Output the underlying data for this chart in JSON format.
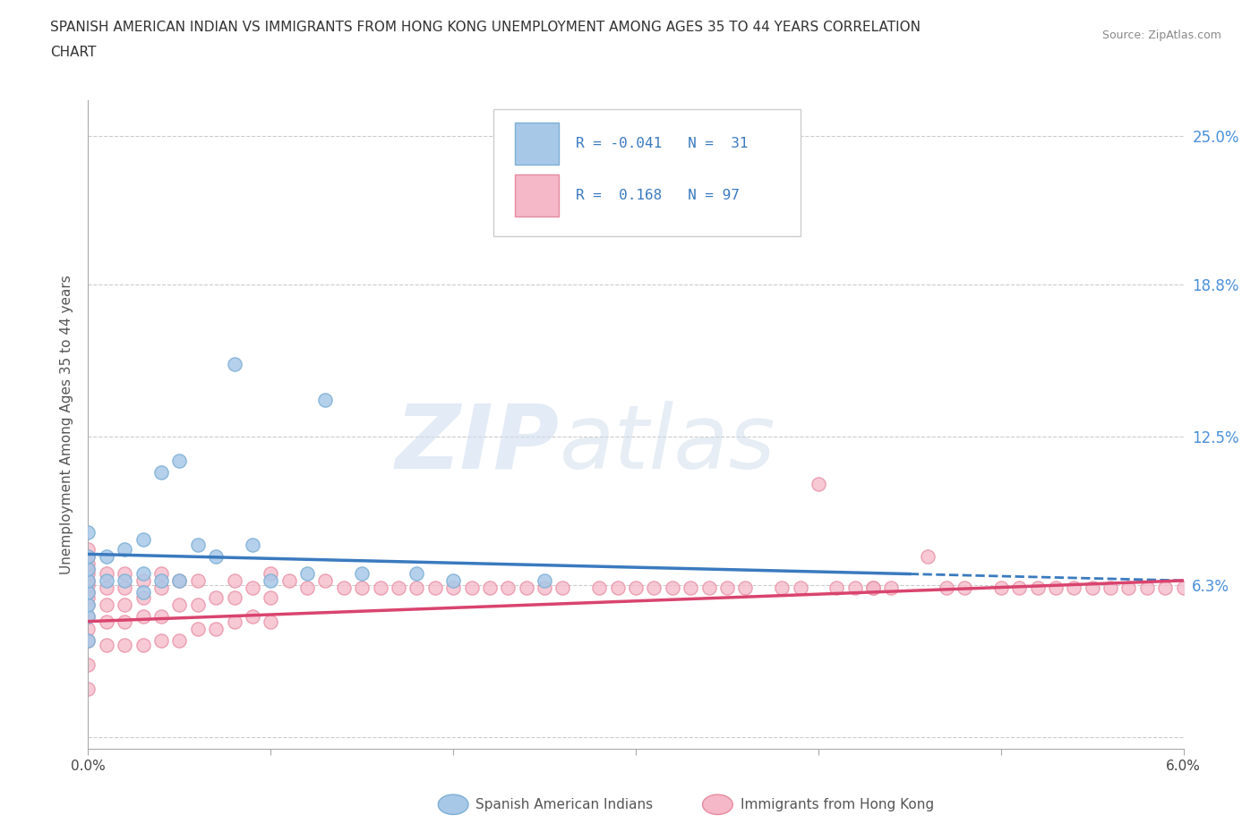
{
  "title_line1": "SPANISH AMERICAN INDIAN VS IMMIGRANTS FROM HONG KONG UNEMPLOYMENT AMONG AGES 35 TO 44 YEARS CORRELATION",
  "title_line2": "CHART",
  "source_text": "Source: ZipAtlas.com",
  "ylabel": "Unemployment Among Ages 35 to 44 years",
  "xlim": [
    0.0,
    0.06
  ],
  "ylim": [
    -0.005,
    0.265
  ],
  "ytick_values": [
    0.063,
    0.125,
    0.188,
    0.25
  ],
  "ytick_labels": [
    "6.3%",
    "12.5%",
    "18.8%",
    "25.0%"
  ],
  "color_blue": "#a8c8e8",
  "color_blue_edge": "#7bafd4",
  "color_pink": "#f4b8c8",
  "color_pink_edge": "#e88aa0",
  "color_blue_line": "#3a7abf",
  "color_pink_line": "#d9446e",
  "grid_color": "#cccccc",
  "watermark_zip": "ZIP",
  "watermark_atlas": "atlas",
  "blue_x": [
    0.0,
    0.0,
    0.0,
    0.0,
    0.0,
    0.0,
    0.0,
    0.0,
    0.001,
    0.001,
    0.002,
    0.002,
    0.003,
    0.003,
    0.003,
    0.004,
    0.004,
    0.005,
    0.005,
    0.006,
    0.007,
    0.008,
    0.009,
    0.01,
    0.012,
    0.013,
    0.015,
    0.018,
    0.02,
    0.025,
    0.028
  ],
  "blue_y": [
    0.04,
    0.05,
    0.055,
    0.06,
    0.065,
    0.07,
    0.075,
    0.085,
    0.065,
    0.075,
    0.065,
    0.078,
    0.06,
    0.068,
    0.082,
    0.065,
    0.11,
    0.065,
    0.115,
    0.08,
    0.075,
    0.155,
    0.08,
    0.065,
    0.068,
    0.14,
    0.068,
    0.068,
    0.065,
    0.065,
    0.22
  ],
  "pink_x": [
    0.0,
    0.0,
    0.0,
    0.0,
    0.0,
    0.0,
    0.0,
    0.0,
    0.0,
    0.0,
    0.0,
    0.0,
    0.0,
    0.0,
    0.0,
    0.001,
    0.001,
    0.001,
    0.001,
    0.001,
    0.002,
    0.002,
    0.002,
    0.002,
    0.002,
    0.003,
    0.003,
    0.003,
    0.003,
    0.004,
    0.004,
    0.004,
    0.004,
    0.005,
    0.005,
    0.005,
    0.006,
    0.006,
    0.006,
    0.007,
    0.007,
    0.008,
    0.008,
    0.008,
    0.009,
    0.009,
    0.01,
    0.01,
    0.01,
    0.011,
    0.012,
    0.013,
    0.014,
    0.015,
    0.016,
    0.017,
    0.018,
    0.019,
    0.02,
    0.021,
    0.022,
    0.023,
    0.024,
    0.025,
    0.026,
    0.028,
    0.029,
    0.03,
    0.031,
    0.032,
    0.033,
    0.034,
    0.035,
    0.036,
    0.038,
    0.039,
    0.04,
    0.042,
    0.043,
    0.044,
    0.046,
    0.047,
    0.048,
    0.05,
    0.051,
    0.052,
    0.053,
    0.054,
    0.055,
    0.056,
    0.057,
    0.058,
    0.059,
    0.06,
    0.041,
    0.043
  ],
  "pink_y": [
    0.02,
    0.03,
    0.04,
    0.045,
    0.05,
    0.055,
    0.058,
    0.06,
    0.063,
    0.065,
    0.068,
    0.07,
    0.072,
    0.075,
    0.078,
    0.038,
    0.048,
    0.055,
    0.062,
    0.068,
    0.038,
    0.048,
    0.055,
    0.062,
    0.068,
    0.038,
    0.05,
    0.058,
    0.065,
    0.04,
    0.05,
    0.062,
    0.068,
    0.04,
    0.055,
    0.065,
    0.045,
    0.055,
    0.065,
    0.045,
    0.058,
    0.048,
    0.058,
    0.065,
    0.05,
    0.062,
    0.048,
    0.058,
    0.068,
    0.065,
    0.062,
    0.065,
    0.062,
    0.062,
    0.062,
    0.062,
    0.062,
    0.062,
    0.062,
    0.062,
    0.062,
    0.062,
    0.062,
    0.062,
    0.062,
    0.062,
    0.062,
    0.062,
    0.062,
    0.062,
    0.062,
    0.062,
    0.062,
    0.062,
    0.062,
    0.062,
    0.105,
    0.062,
    0.062,
    0.062,
    0.075,
    0.062,
    0.062,
    0.062,
    0.062,
    0.062,
    0.062,
    0.062,
    0.062,
    0.062,
    0.062,
    0.062,
    0.062,
    0.062,
    0.062,
    0.062
  ],
  "blue_trend_x": [
    0.0,
    0.06
  ],
  "blue_trend_y": [
    0.076,
    0.065
  ],
  "pink_trend_x": [
    0.0,
    0.06
  ],
  "pink_trend_y": [
    0.048,
    0.065
  ]
}
